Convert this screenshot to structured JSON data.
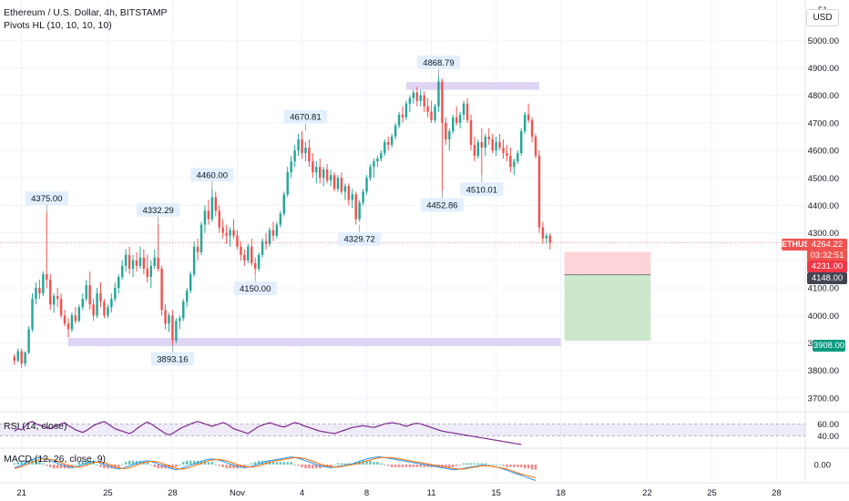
{
  "header": {
    "symbol_line": "Ethereum / U.S. Dollar, 4h, BITSTAMP",
    "indicator_line": "Pivots HL (10, 10, 10, 10)"
  },
  "currency_button": "USD",
  "panes": {
    "rsi_label": "RSI (14, close)",
    "macd_label": "MACD (12, 26, close, 9)",
    "rsi_ticks": [
      "60.00",
      "40.00"
    ],
    "macd_ticks": [
      "0.00"
    ]
  },
  "price_tags": {
    "symbol": "ETHUSD",
    "price": "4264.22",
    "countdown": "03:32:51",
    "level1": "4231.00",
    "level2": "4148.00",
    "target": "3908.00"
  },
  "colors": {
    "up": "#26a69a",
    "down": "#ef5350",
    "zone": "#d9ccf2",
    "rsi_line": "#7e2c8e",
    "macd_line": "#2196f3",
    "signal_line": "#ff6d00",
    "text": "#131722",
    "grid": "#f0f3fa"
  },
  "chart_data": {
    "type": "candlestick",
    "y_axis": {
      "ticks": [
        3700,
        3800,
        3900,
        4000,
        4100,
        4200,
        4300,
        4400,
        4500,
        4600,
        4700,
        4800,
        4900,
        5000
      ],
      "labels": [
        "3700.00",
        "3800.00",
        "3900.00",
        "4000.00",
        "4100.00",
        "",
        "4300.00",
        "4400.00",
        "4500.00",
        "4600.00",
        "4700.00",
        "4800.00",
        "4900.00",
        "5000.00"
      ],
      "range": [
        3650,
        5130
      ],
      "top_label_partial": "51"
    },
    "x_axis": {
      "labels": [
        "21",
        "25",
        "28",
        "Nov",
        "4",
        "8",
        "11",
        "15",
        "18",
        "22",
        "25",
        "28"
      ],
      "label_index": [
        2,
        26,
        44,
        62,
        80,
        98,
        116,
        134,
        152,
        176,
        194,
        212
      ],
      "visible_index_range": [
        -4,
        220
      ]
    },
    "pivots": [
      {
        "label": "4375.00",
        "value": 4375.0,
        "index": 9,
        "kind": "high"
      },
      {
        "label": "4332.29",
        "value": 4332.29,
        "index": 40,
        "kind": "high"
      },
      {
        "label": "3893.16",
        "value": 3893.16,
        "index": 44,
        "kind": "low"
      },
      {
        "label": "4460.00",
        "value": 4460.0,
        "index": 55,
        "kind": "high"
      },
      {
        "label": "4150.00",
        "value": 4150.0,
        "index": 67,
        "kind": "low"
      },
      {
        "label": "4670.81",
        "value": 4670.81,
        "index": 81,
        "kind": "high"
      },
      {
        "label": "4329.72",
        "value": 4329.72,
        "index": 96,
        "kind": "low"
      },
      {
        "label": "4868.79",
        "value": 4868.79,
        "index": 118,
        "kind": "high"
      },
      {
        "label": "4452.86",
        "value": 4452.86,
        "index": 119,
        "kind": "low"
      },
      {
        "label": "4510.01",
        "value": 4510.01,
        "index": 130,
        "kind": "low"
      }
    ],
    "zones": [
      {
        "from_index": 109,
        "to_index": 146,
        "low": 4820,
        "high": 4848
      },
      {
        "from_index": 15,
        "to_index": 152,
        "low": 3888,
        "high": 3918
      }
    ],
    "position": {
      "from_index": 153,
      "to_index": 177,
      "entry": 4148.0,
      "stop": 4231.0,
      "target": 3908.0
    },
    "current_price": 4264.22,
    "candles": [
      [
        3850,
        3860,
        3820,
        3835
      ],
      [
        3835,
        3880,
        3830,
        3870
      ],
      [
        3870,
        3880,
        3810,
        3825
      ],
      [
        3825,
        3870,
        3815,
        3865
      ],
      [
        3865,
        3960,
        3860,
        3950
      ],
      [
        3950,
        4080,
        3940,
        4060
      ],
      [
        4060,
        4120,
        4040,
        4100
      ],
      [
        4100,
        4130,
        4060,
        4080
      ],
      [
        4080,
        4160,
        4070,
        4150
      ],
      [
        4150,
        4375,
        4100,
        4130
      ],
      [
        4130,
        4150,
        4020,
        4040
      ],
      [
        4040,
        4080,
        4010,
        4070
      ],
      [
        4070,
        4100,
        4030,
        4060
      ],
      [
        4060,
        4080,
        3990,
        4000
      ],
      [
        4000,
        4020,
        3960,
        3970
      ],
      [
        3970,
        3990,
        3920,
        3950
      ],
      [
        3950,
        4010,
        3940,
        4000
      ],
      [
        4000,
        4030,
        3970,
        3980
      ],
      [
        3980,
        4040,
        3975,
        4030
      ],
      [
        4030,
        4080,
        4020,
        4060
      ],
      [
        4060,
        4130,
        4050,
        4110
      ],
      [
        4110,
        4160,
        4020,
        4040
      ],
      [
        4040,
        4060,
        3980,
        4000
      ],
      [
        4000,
        4100,
        3990,
        4080
      ],
      [
        4080,
        4120,
        4030,
        4050
      ],
      [
        4050,
        4060,
        3990,
        4000
      ],
      [
        4000,
        4040,
        3990,
        4030
      ],
      [
        4030,
        4080,
        4010,
        4060
      ],
      [
        4060,
        4120,
        4050,
        4100
      ],
      [
        4100,
        4150,
        4080,
        4140
      ],
      [
        4140,
        4200,
        4130,
        4180
      ],
      [
        4180,
        4240,
        4160,
        4220
      ],
      [
        4220,
        4250,
        4150,
        4170
      ],
      [
        4170,
        4220,
        4140,
        4200
      ],
      [
        4200,
        4230,
        4160,
        4180
      ],
      [
        4180,
        4250,
        4170,
        4210
      ],
      [
        4210,
        4240,
        4150,
        4170
      ],
      [
        4170,
        4220,
        4120,
        4140
      ],
      [
        4140,
        4200,
        4100,
        4180
      ],
      [
        4180,
        4240,
        4170,
        4210
      ],
      [
        4210,
        4332,
        4160,
        4170
      ],
      [
        4170,
        4180,
        4000,
        4020
      ],
      [
        4020,
        4040,
        3950,
        3970
      ],
      [
        3970,
        4010,
        3940,
        4000
      ],
      [
        4000,
        4020,
        3893,
        3910
      ],
      [
        3910,
        3990,
        3900,
        3980
      ],
      [
        3980,
        4000,
        3950,
        3990
      ],
      [
        3990,
        4060,
        3980,
        4050
      ],
      [
        4050,
        4100,
        4030,
        4090
      ],
      [
        4090,
        4160,
        4080,
        4150
      ],
      [
        4150,
        4270,
        4140,
        4250
      ],
      [
        4250,
        4280,
        4200,
        4230
      ],
      [
        4230,
        4340,
        4220,
        4330
      ],
      [
        4330,
        4400,
        4300,
        4380
      ],
      [
        4380,
        4420,
        4330,
        4350
      ],
      [
        4350,
        4460,
        4340,
        4430
      ],
      [
        4430,
        4450,
        4360,
        4380
      ],
      [
        4380,
        4400,
        4300,
        4320
      ],
      [
        4320,
        4350,
        4280,
        4300
      ],
      [
        4300,
        4330,
        4260,
        4290
      ],
      [
        4290,
        4320,
        4250,
        4310
      ],
      [
        4310,
        4350,
        4280,
        4290
      ],
      [
        4290,
        4310,
        4240,
        4250
      ],
      [
        4250,
        4270,
        4200,
        4220
      ],
      [
        4220,
        4240,
        4180,
        4200
      ],
      [
        4200,
        4260,
        4190,
        4250
      ],
      [
        4250,
        4280,
        4180,
        4190
      ],
      [
        4190,
        4210,
        4150,
        4170
      ],
      [
        4170,
        4230,
        4160,
        4220
      ],
      [
        4220,
        4280,
        4210,
        4270
      ],
      [
        4270,
        4300,
        4240,
        4260
      ],
      [
        4260,
        4320,
        4250,
        4310
      ],
      [
        4310,
        4340,
        4270,
        4290
      ],
      [
        4290,
        4340,
        4280,
        4330
      ],
      [
        4330,
        4380,
        4320,
        4370
      ],
      [
        4370,
        4450,
        4360,
        4440
      ],
      [
        4440,
        4540,
        4430,
        4520
      ],
      [
        4520,
        4580,
        4500,
        4560
      ],
      [
        4560,
        4620,
        4540,
        4600
      ],
      [
        4600,
        4660,
        4580,
        4640
      ],
      [
        4640,
        4670,
        4570,
        4590
      ],
      [
        4590,
        4630,
        4560,
        4610
      ],
      [
        4610,
        4640,
        4540,
        4560
      ],
      [
        4560,
        4590,
        4500,
        4520
      ],
      [
        4520,
        4560,
        4480,
        4540
      ],
      [
        4540,
        4570,
        4480,
        4500
      ],
      [
        4500,
        4540,
        4470,
        4530
      ],
      [
        4530,
        4550,
        4480,
        4490
      ],
      [
        4490,
        4530,
        4470,
        4510
      ],
      [
        4510,
        4520,
        4450,
        4460
      ],
      [
        4460,
        4510,
        4450,
        4500
      ],
      [
        4500,
        4520,
        4440,
        4450
      ],
      [
        4450,
        4480,
        4420,
        4470
      ],
      [
        4470,
        4480,
        4400,
        4420
      ],
      [
        4420,
        4460,
        4390,
        4440
      ],
      [
        4440,
        4450,
        4330,
        4350
      ],
      [
        4350,
        4420,
        4340,
        4410
      ],
      [
        4410,
        4460,
        4400,
        4450
      ],
      [
        4450,
        4510,
        4440,
        4500
      ],
      [
        4500,
        4550,
        4490,
        4540
      ],
      [
        4540,
        4570,
        4500,
        4560
      ],
      [
        4560,
        4580,
        4540,
        4570
      ],
      [
        4570,
        4600,
        4560,
        4590
      ],
      [
        4590,
        4640,
        4580,
        4630
      ],
      [
        4630,
        4650,
        4600,
        4620
      ],
      [
        4620,
        4660,
        4610,
        4650
      ],
      [
        4650,
        4700,
        4640,
        4690
      ],
      [
        4690,
        4740,
        4680,
        4730
      ],
      [
        4730,
        4760,
        4700,
        4720
      ],
      [
        4720,
        4780,
        4710,
        4770
      ],
      [
        4770,
        4800,
        4740,
        4790
      ],
      [
        4790,
        4820,
        4770,
        4810
      ],
      [
        4810,
        4830,
        4760,
        4780
      ],
      [
        4780,
        4820,
        4760,
        4800
      ],
      [
        4800,
        4815,
        4740,
        4760
      ],
      [
        4760,
        4790,
        4720,
        4740
      ],
      [
        4740,
        4780,
        4700,
        4710
      ],
      [
        4710,
        4770,
        4700,
        4760
      ],
      [
        4760,
        4868.79,
        4740,
        4850
      ],
      [
        4850,
        4860,
        4452.86,
        4700
      ],
      [
        4700,
        4720,
        4620,
        4640
      ],
      [
        4640,
        4680,
        4600,
        4670
      ],
      [
        4670,
        4730,
        4660,
        4720
      ],
      [
        4720,
        4760,
        4690,
        4700
      ],
      [
        4700,
        4740,
        4680,
        4730
      ],
      [
        4730,
        4780,
        4710,
        4770
      ],
      [
        4770,
        4790,
        4700,
        4710
      ],
      [
        4710,
        4730,
        4600,
        4620
      ],
      [
        4620,
        4650,
        4560,
        4580
      ],
      [
        4580,
        4640,
        4570,
        4630
      ],
      [
        4630,
        4680,
        4510.01,
        4610
      ],
      [
        4610,
        4660,
        4580,
        4650
      ],
      [
        4650,
        4680,
        4620,
        4640
      ],
      [
        4640,
        4660,
        4590,
        4600
      ],
      [
        4600,
        4650,
        4580,
        4630
      ],
      [
        4630,
        4660,
        4600,
        4610
      ],
      [
        4610,
        4640,
        4570,
        4590
      ],
      [
        4590,
        4620,
        4560,
        4580
      ],
      [
        4580,
        4610,
        4520,
        4540
      ],
      [
        4540,
        4570,
        4510,
        4560
      ],
      [
        4560,
        4600,
        4550,
        4590
      ],
      [
        4590,
        4680,
        4580,
        4670
      ],
      [
        4670,
        4740,
        4660,
        4730
      ],
      [
        4730,
        4770,
        4700,
        4710
      ],
      [
        4710,
        4720,
        4630,
        4650
      ],
      [
        4650,
        4660,
        4570,
        4580
      ],
      [
        4580,
        4600,
        4300,
        4320
      ],
      [
        4320,
        4340,
        4260,
        4280
      ],
      [
        4280,
        4300,
        4260,
        4290
      ],
      [
        4290,
        4300,
        4240,
        4264.22
      ]
    ],
    "rsi": [
      48,
      52,
      50,
      56,
      62,
      64,
      60,
      58,
      56,
      54,
      52,
      55,
      58,
      60,
      62,
      57,
      54,
      50,
      48,
      46,
      49,
      53,
      57,
      60,
      62,
      64,
      60,
      56,
      52,
      50,
      48,
      46,
      44,
      47,
      52,
      56,
      60,
      63,
      60,
      56,
      52,
      48,
      44,
      42,
      44,
      48,
      52,
      55,
      57,
      60,
      62,
      64,
      62,
      60,
      58,
      56,
      58,
      60,
      62,
      60,
      56,
      52,
      50,
      48,
      46,
      44,
      48,
      52,
      56,
      58,
      60,
      62,
      60,
      58,
      56,
      55,
      57,
      60,
      62,
      61,
      58,
      56,
      54,
      52,
      50,
      48,
      47,
      46,
      45,
      44,
      46,
      48,
      50,
      52,
      54,
      55,
      56,
      57,
      56,
      55,
      54,
      56,
      58,
      60,
      61,
      62,
      61,
      60,
      58,
      56,
      58,
      60,
      61,
      60,
      58,
      56,
      54,
      52,
      50,
      48,
      47,
      46,
      45,
      44,
      43,
      42,
      41,
      40,
      39,
      38,
      37,
      36,
      35,
      34,
      33,
      32,
      31,
      30,
      29,
      28,
      27,
      26
    ],
    "macd": [
      -5,
      -3,
      -1,
      2,
      5,
      8,
      10,
      11,
      10,
      8,
      6,
      4,
      2,
      0,
      -2,
      -4,
      -5,
      -4,
      -2,
      0,
      2,
      4,
      5,
      4,
      2,
      0,
      -2,
      -4,
      -6,
      -7,
      -6,
      -4,
      -2,
      0,
      2,
      4,
      5,
      6,
      5,
      3,
      1,
      -1,
      -3,
      -5,
      -7,
      -8,
      -7,
      -5,
      -3,
      -1,
      1,
      3,
      5,
      7,
      8,
      9,
      8,
      7,
      5,
      3,
      1,
      -1,
      -3,
      -4,
      -5,
      -4,
      -3,
      -1,
      1,
      3,
      5,
      6,
      7,
      8,
      9,
      10,
      11,
      12,
      11,
      10,
      8,
      6,
      4,
      2,
      0,
      -2,
      -3,
      -4,
      -5,
      -4,
      -3,
      -2,
      -1,
      0,
      1,
      3,
      5,
      7,
      9,
      10,
      11,
      12,
      12,
      11,
      10,
      9,
      8,
      7,
      6,
      5,
      4,
      3,
      2,
      1,
      0,
      -1,
      -2,
      -3,
      -4,
      -5,
      -6,
      -7,
      -8,
      -8,
      -7,
      -6,
      -5,
      -4,
      -3,
      -2,
      -1,
      -1,
      -2,
      -3,
      -4,
      -5,
      -7,
      -9,
      -11,
      -13,
      -15,
      -17,
      -19,
      -21,
      -23,
      -25
    ],
    "signal": [
      -6,
      -5,
      -3,
      -1,
      2,
      4,
      6,
      8,
      9,
      9,
      8,
      7,
      5,
      3,
      1,
      -1,
      -3,
      -4,
      -4,
      -3,
      -1,
      1,
      3,
      4,
      4,
      3,
      1,
      -1,
      -3,
      -5,
      -6,
      -6,
      -5,
      -3,
      -1,
      1,
      3,
      4,
      5,
      5,
      4,
      2,
      0,
      -2,
      -4,
      -6,
      -7,
      -7,
      -6,
      -4,
      -2,
      0,
      2,
      4,
      6,
      7,
      8,
      8,
      7,
      6,
      4,
      2,
      0,
      -2,
      -3,
      -4,
      -4,
      -3,
      -2,
      0,
      2,
      3,
      5,
      6,
      7,
      8,
      9,
      10,
      11,
      11,
      10,
      9,
      7,
      5,
      3,
      1,
      -1,
      -2,
      -3,
      -4,
      -4,
      -3,
      -2,
      -1,
      0,
      1,
      2,
      4,
      6,
      7,
      9,
      10,
      11,
      11,
      11,
      11,
      10,
      9,
      8,
      7,
      6,
      5,
      4,
      3,
      2,
      1,
      0,
      -1,
      -2,
      -3,
      -4,
      -5,
      -6,
      -7,
      -7,
      -7,
      -6,
      -5,
      -4,
      -3,
      -2,
      -2,
      -2,
      -3,
      -4,
      -5,
      -6,
      -7,
      -9,
      -11,
      -13,
      -15,
      -16,
      -18,
      -19,
      -21
    ]
  }
}
